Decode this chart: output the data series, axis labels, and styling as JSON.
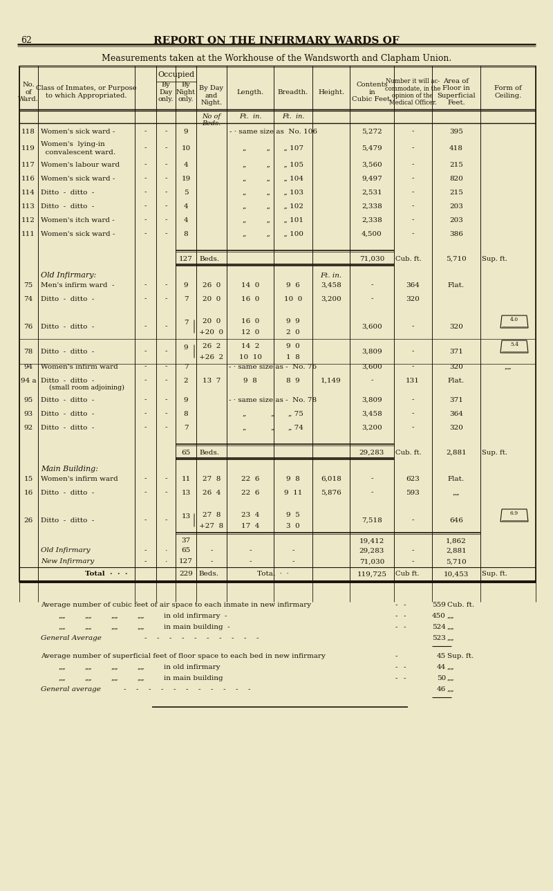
{
  "bg_color": "#ede8c8",
  "text_color": "#1a1008",
  "page_number": "62",
  "header_title": "REPORT ON THE INFIRMARY WARDS OF",
  "subtitle": "Measurements taken at the Workhouse of the Wandsworth and Clapham Union."
}
